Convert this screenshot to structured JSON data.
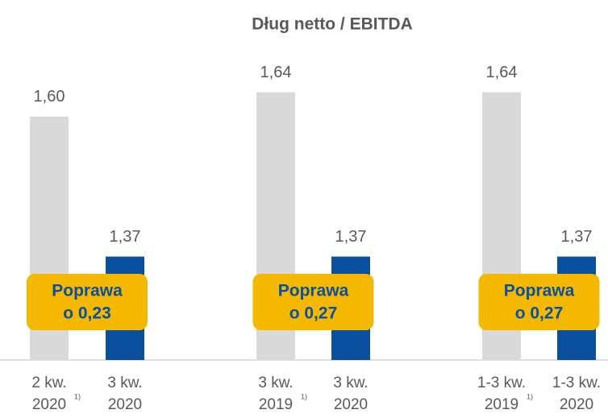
{
  "chart_data": {
    "type": "bar",
    "title": "Dług netto / EBITDA",
    "categories": [
      [
        "2 kw.",
        "2020"
      ],
      [
        "3 kw.",
        "2020"
      ],
      [
        "3 kw.",
        "2019"
      ],
      [
        "3 kw.",
        "2020"
      ],
      [
        "1-3 kw.",
        "2019"
      ],
      [
        "1-3 kw.",
        "2020"
      ]
    ],
    "footnotes": [
      "1)",
      null,
      "1)",
      null,
      "1)",
      null
    ],
    "values": [
      1.6,
      1.37,
      1.64,
      1.37,
      1.64,
      1.37
    ],
    "value_labels": [
      "1,60",
      "1,37",
      "1,64",
      "1,37",
      "1,64",
      "1,37"
    ],
    "colors": [
      "#d9d9d9",
      "#0b4f9f",
      "#d9d9d9",
      "#0b4f9f",
      "#d9d9d9",
      "#0b4f9f"
    ],
    "ylim": [
      1.2,
      1.65
    ],
    "annotations": [
      [
        "Poprawa",
        "o 0,23"
      ],
      [
        "Poprawa",
        "o 0,27"
      ],
      [
        "Poprawa",
        "o 0,27"
      ]
    ]
  }
}
